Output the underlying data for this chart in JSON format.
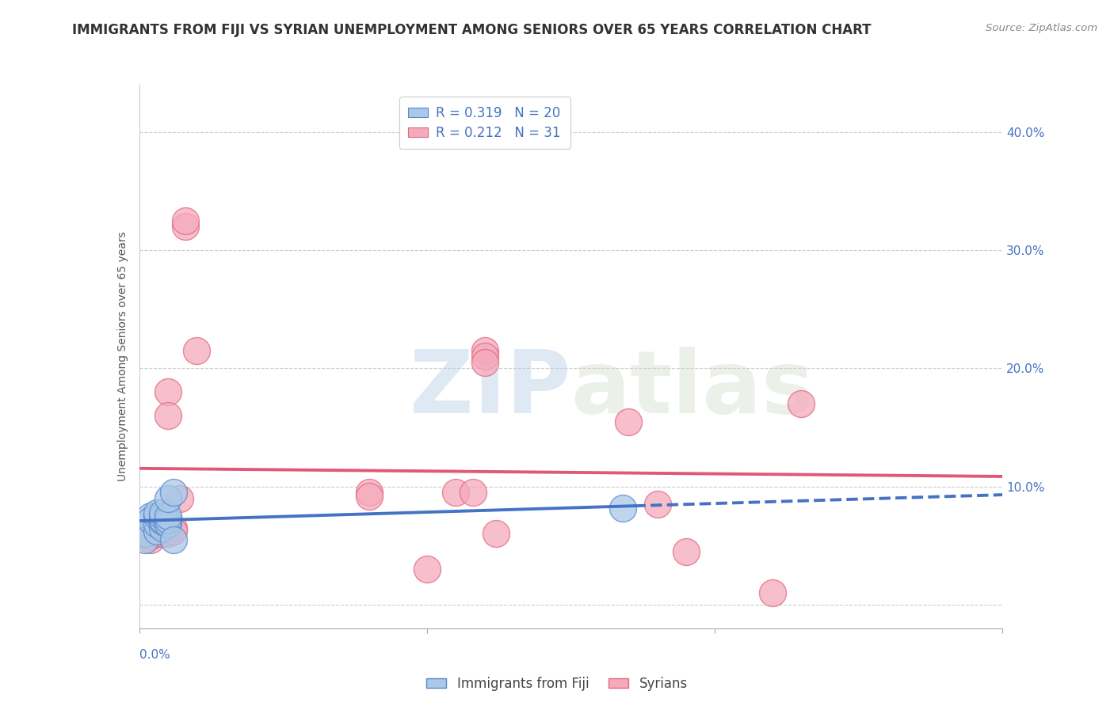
{
  "title": "IMMIGRANTS FROM FIJI VS SYRIAN UNEMPLOYMENT AMONG SENIORS OVER 65 YEARS CORRELATION CHART",
  "source": "Source: ZipAtlas.com",
  "ylabel": "Unemployment Among Seniors over 65 years",
  "xlim": [
    0.0,
    0.15
  ],
  "ylim": [
    -0.02,
    0.44
  ],
  "yticks_right": [
    0.0,
    0.1,
    0.2,
    0.3,
    0.4
  ],
  "ytick_labels_right": [
    "",
    "10.0%",
    "20.0%",
    "30.0%",
    "40.0%"
  ],
  "fiji_x": [
    0.001,
    0.001,
    0.002,
    0.002,
    0.003,
    0.003,
    0.003,
    0.003,
    0.004,
    0.004,
    0.004,
    0.004,
    0.004,
    0.005,
    0.005,
    0.005,
    0.005,
    0.006,
    0.006,
    0.084
  ],
  "fiji_y": [
    0.06,
    0.055,
    0.075,
    0.072,
    0.062,
    0.068,
    0.075,
    0.078,
    0.065,
    0.07,
    0.072,
    0.075,
    0.078,
    0.068,
    0.072,
    0.075,
    0.09,
    0.095,
    0.055,
    0.082
  ],
  "syrian_x": [
    0.001,
    0.002,
    0.002,
    0.003,
    0.003,
    0.004,
    0.004,
    0.004,
    0.005,
    0.005,
    0.005,
    0.006,
    0.006,
    0.007,
    0.008,
    0.008,
    0.01,
    0.04,
    0.04,
    0.05,
    0.055,
    0.058,
    0.06,
    0.06,
    0.06,
    0.062,
    0.085,
    0.09,
    0.095,
    0.11,
    0.115
  ],
  "syrian_y": [
    0.06,
    0.055,
    0.058,
    0.06,
    0.065,
    0.068,
    0.062,
    0.06,
    0.18,
    0.16,
    0.06,
    0.065,
    0.062,
    0.09,
    0.32,
    0.325,
    0.215,
    0.095,
    0.092,
    0.03,
    0.095,
    0.095,
    0.215,
    0.21,
    0.205,
    0.06,
    0.155,
    0.085,
    0.045,
    0.01,
    0.17
  ],
  "fiji_color": "#aac8e8",
  "syrian_color": "#f5aabb",
  "fiji_edge_color": "#5588cc",
  "syrian_edge_color": "#e06880",
  "fiji_line_color": "#4472c4",
  "syrian_line_color": "#e05878",
  "fiji_R": 0.319,
  "fiji_N": 20,
  "syrian_R": 0.212,
  "syrian_N": 31,
  "watermark_zip": "ZIP",
  "watermark_atlas": "atlas",
  "background_color": "#ffffff",
  "grid_color": "#cccccc",
  "title_fontsize": 12,
  "axis_label_fontsize": 10,
  "tick_fontsize": 11,
  "legend_fontsize": 12
}
